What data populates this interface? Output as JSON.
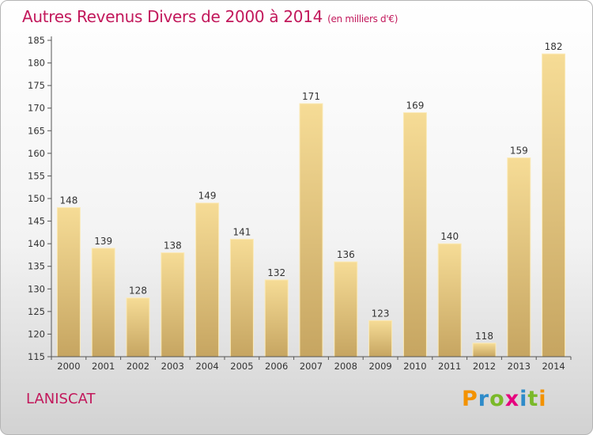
{
  "header": {
    "title": "Autres Revenus Divers de 2000 à 2014",
    "subtitle": "(en milliers d'€)"
  },
  "footer": {
    "place": "LANISCAT",
    "logo": {
      "letters": [
        "P",
        "r",
        "o",
        "x",
        "i",
        "t",
        "i"
      ],
      "colors": [
        "#f39200",
        "#2e8bc9",
        "#7ab929",
        "#e6007e",
        "#2e8bc9",
        "#7ab929",
        "#f39200"
      ]
    }
  },
  "colors": {
    "title": "#c2185b",
    "bar_light": "#f6dc96",
    "bar_dark": "#c6a561",
    "axis": "#555555"
  },
  "chart_data": {
    "type": "bar",
    "categories": [
      "2000",
      "2001",
      "2002",
      "2003",
      "2004",
      "2005",
      "2006",
      "2007",
      "2008",
      "2009",
      "2010",
      "2011",
      "2012",
      "2013",
      "2014"
    ],
    "values": [
      148,
      139,
      128,
      138,
      149,
      141,
      132,
      171,
      136,
      123,
      169,
      140,
      118,
      159,
      182
    ],
    "title": "Autres Revenus Divers de 2000 à 2014",
    "subtitle": "(en milliers d'€)",
    "ylim": [
      115,
      185
    ],
    "yticks": [
      115,
      120,
      125,
      130,
      135,
      140,
      145,
      150,
      155,
      160,
      165,
      170,
      175,
      180,
      185
    ],
    "grid": false,
    "data_labels": true
  }
}
